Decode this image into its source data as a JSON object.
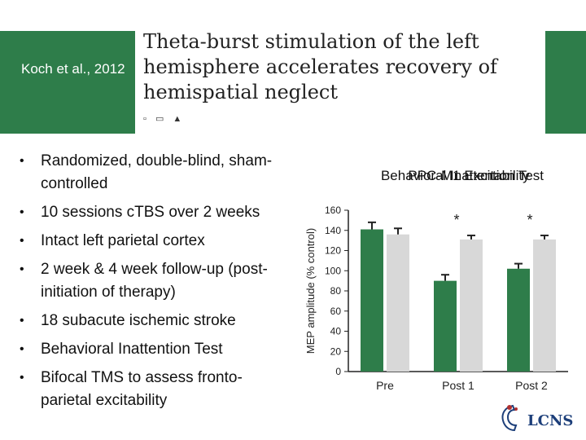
{
  "header": {
    "citation": "Koch et al., 2012",
    "paper_title": "Theta-burst stimulation of the left hemisphere accelerates recovery of hemispatial neglect",
    "paper_icons": "▫ ▭ ▲"
  },
  "bullets": [
    {
      "text": "Randomized, double-blind, sham-controlled"
    },
    {
      "text": "10 sessions cTBS over 2 weeks"
    },
    {
      "text": "Intact left parietal cortex"
    },
    {
      "text": "2 week & 4 week follow-up (post-initiation of therapy)"
    },
    {
      "text": "18 subacute ischemic stroke"
    },
    {
      "text": "Behavioral Inattention Test"
    },
    {
      "text": "Bifocal TMS to assess fronto-parietal excitability"
    }
  ],
  "bullet_symbol": "•",
  "logo": {
    "text": "LCNS"
  },
  "colors": {
    "band": "#2e7d4a",
    "bar_dark": "#2e7d4a",
    "bar_light": "#d8d8d8",
    "logo": "#1d3f7a"
  },
  "chart_data": {
    "type": "bar",
    "title": "Behavioral Inattention Test",
    "title_overlay": "PPC-M1 Excitability",
    "ylabel": "MEP amplitude (% control)",
    "xlabel": "",
    "ylim": [
      0,
      160
    ],
    "yticks": [
      0,
      20,
      40,
      60,
      80,
      100,
      120,
      140,
      160
    ],
    "categories": [
      "Pre",
      "Post 1",
      "Post 2"
    ],
    "series": [
      {
        "values": [
          141,
          90,
          102
        ],
        "errors": [
          7,
          6,
          5
        ],
        "color": "#2e7d4a"
      },
      {
        "values": [
          136,
          131,
          131
        ],
        "errors": [
          6,
          4,
          4
        ],
        "color": "#d8d8d8"
      }
    ],
    "annotations": [
      "",
      "*",
      "*"
    ],
    "grid": false
  }
}
